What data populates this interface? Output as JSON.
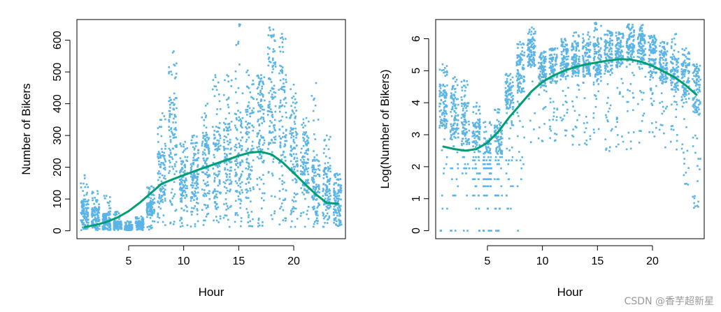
{
  "figure": {
    "watermark": "CSDN @香芋超新星"
  },
  "colors": {
    "points": "#5ab4e5",
    "smooth": "#009e73",
    "axis": "#000000"
  },
  "chart_data": [
    {
      "type": "scatter",
      "name": "bikers-by-hour",
      "title": "",
      "xlabel": "Hour",
      "ylabel": "Number of Bikers",
      "xlim": [
        0.3,
        24.7
      ],
      "ylim": [
        -25,
        665
      ],
      "xticks": [
        5,
        10,
        15,
        20
      ],
      "yticks": [
        0,
        100,
        200,
        300,
        400,
        500,
        600
      ],
      "hours": [
        1,
        2,
        3,
        4,
        5,
        6,
        7,
        8,
        9,
        10,
        11,
        12,
        13,
        14,
        15,
        16,
        17,
        18,
        19,
        20,
        21,
        22,
        23,
        24
      ],
      "hourly_summary": {
        "min": [
          2,
          2,
          2,
          2,
          2,
          2,
          2,
          2,
          8,
          12,
          12,
          12,
          12,
          12,
          12,
          12,
          12,
          12,
          12,
          12,
          12,
          12,
          12,
          12
        ],
        "q_low": [
          30,
          20,
          15,
          10,
          5,
          10,
          50,
          100,
          180,
          90,
          100,
          115,
          110,
          115,
          120,
          130,
          210,
          270,
          200,
          150,
          120,
          90,
          65,
          45
        ],
        "q_high": [
          100,
          75,
          55,
          30,
          15,
          30,
          95,
          250,
          430,
          230,
          260,
          310,
          330,
          340,
          360,
          400,
          460,
          570,
          520,
          380,
          290,
          230,
          200,
          150
        ],
        "max": [
          175,
          125,
          110,
          60,
          30,
          45,
          140,
          370,
          565,
          280,
          300,
          400,
          490,
          490,
          650,
          505,
          490,
          640,
          620,
          460,
          355,
          465,
          300,
          180
        ]
      },
      "series": [
        {
          "name": "smooth fit",
          "x": [
            1,
            2,
            3,
            4,
            5,
            6,
            7,
            8,
            9,
            10,
            11,
            12,
            13,
            14,
            15,
            16,
            17,
            18,
            19,
            20,
            21,
            22,
            23,
            24
          ],
          "y": [
            12,
            18,
            28,
            42,
            62,
            88,
            118,
            148,
            162,
            175,
            188,
            200,
            212,
            224,
            236,
            246,
            249,
            240,
            215,
            182,
            148,
            115,
            88,
            85
          ]
        }
      ]
    },
    {
      "type": "scatter",
      "name": "log-bikers-by-hour",
      "title": "",
      "xlabel": "Hour",
      "ylabel": "Log(Number of Bikers)",
      "xlim": [
        0.3,
        24.7
      ],
      "ylim": [
        -0.25,
        6.6
      ],
      "xticks": [
        5,
        10,
        15,
        20
      ],
      "yticks": [
        0,
        1,
        2,
        3,
        4,
        5,
        6
      ],
      "hours": [
        1,
        2,
        3,
        4,
        5,
        6,
        7,
        8,
        9,
        10,
        11,
        12,
        13,
        14,
        15,
        16,
        17,
        18,
        19,
        20,
        21,
        22,
        23,
        24
      ],
      "hourly_summary": {
        "min": [
          0,
          0,
          0,
          0,
          0,
          0,
          0,
          0,
          2.6,
          2.6,
          2.8,
          2.8,
          2.6,
          2.6,
          2.6,
          2.3,
          2.6,
          2.5,
          2.6,
          2.6,
          2.6,
          2.5,
          1.4,
          0.69
        ],
        "q_low": [
          3.2,
          2.9,
          2.7,
          2.3,
          1.7,
          2.3,
          3.8,
          4.3,
          5.1,
          4.5,
          4.6,
          4.7,
          4.8,
          4.8,
          4.8,
          4.9,
          5.1,
          5.3,
          5.2,
          4.9,
          4.6,
          4.4,
          4.1,
          3.6
        ],
        "q_high": [
          4.6,
          4.3,
          4.0,
          3.4,
          2.8,
          3.3,
          4.6,
          5.5,
          6.0,
          5.4,
          5.6,
          5.7,
          5.8,
          5.8,
          5.9,
          6.0,
          6.1,
          6.3,
          6.2,
          5.9,
          5.6,
          5.4,
          5.3,
          5.0
        ],
        "max": [
          5.2,
          4.8,
          4.7,
          4.0,
          3.4,
          3.8,
          4.9,
          5.9,
          6.35,
          5.6,
          5.7,
          6.0,
          6.2,
          6.2,
          6.5,
          6.25,
          6.2,
          6.45,
          6.43,
          6.1,
          5.9,
          6.15,
          5.7,
          5.2
        ]
      },
      "series": [
        {
          "name": "smooth fit",
          "x": [
            1,
            2,
            3,
            4,
            5,
            6,
            7,
            8,
            9,
            10,
            11,
            12,
            13,
            14,
            15,
            16,
            17,
            18,
            19,
            20,
            21,
            22,
            23,
            24
          ],
          "y": [
            2.63,
            2.55,
            2.5,
            2.55,
            2.75,
            3.1,
            3.55,
            3.95,
            4.35,
            4.65,
            4.85,
            5.0,
            5.12,
            5.2,
            5.26,
            5.32,
            5.36,
            5.35,
            5.28,
            5.15,
            4.98,
            4.8,
            4.55,
            4.25
          ]
        }
      ]
    }
  ]
}
